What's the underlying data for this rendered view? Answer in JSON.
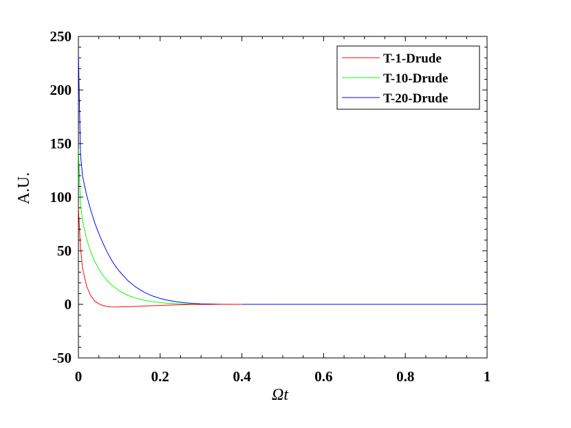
{
  "chart_data": {
    "type": "line",
    "title": "",
    "xlabel": "Ωt",
    "ylabel": "A.U.",
    "xlim": [
      0,
      1
    ],
    "ylim": [
      -50,
      250
    ],
    "xticks": [
      0,
      0.2,
      0.4,
      0.6,
      0.8,
      1
    ],
    "xtick_labels": [
      "0",
      "0.2",
      "0.4",
      "0.6",
      "0.8",
      "1"
    ],
    "yticks": [
      -50,
      0,
      50,
      100,
      150,
      200,
      250
    ],
    "ytick_labels": [
      "-50",
      "0",
      "50",
      "100",
      "150",
      "200",
      "250"
    ],
    "grid": false,
    "legend_position": "top-right",
    "series": [
      {
        "name": "T-1-Drude",
        "color": "#ff0000",
        "x": [
          0,
          0.005,
          0.01,
          0.02,
          0.03,
          0.04,
          0.05,
          0.06,
          0.07,
          0.08,
          0.09,
          0.1,
          0.12,
          0.14,
          0.16,
          0.18,
          0.2,
          0.22,
          0.24,
          0.26,
          0.28,
          0.3,
          0.35,
          0.4
        ],
        "y": [
          90,
          53,
          34,
          17,
          8,
          3,
          0.5,
          -1.2,
          -2.0,
          -2.4,
          -2.5,
          -2.4,
          -2.2,
          -1.9,
          -1.6,
          -1.3,
          -1.0,
          -0.7,
          -0.5,
          -0.3,
          -0.2,
          -0.1,
          0,
          0
        ]
      },
      {
        "name": "T-10-Drude",
        "color": "#00ff00",
        "x": [
          0,
          0.005,
          0.01,
          0.02,
          0.03,
          0.04,
          0.05,
          0.06,
          0.07,
          0.08,
          0.1,
          0.12,
          0.14,
          0.16,
          0.18,
          0.2,
          0.22,
          0.24,
          0.26,
          0.28,
          0.3
        ],
        "y": [
          145,
          95,
          78,
          61,
          49,
          40,
          33,
          27,
          22.5,
          18.5,
          12.5,
          8.5,
          5.8,
          3.9,
          2.6,
          1.6,
          1.0,
          0.6,
          0.3,
          0.1,
          0
        ]
      },
      {
        "name": "T-20-Drude",
        "color": "#0000ff",
        "x": [
          0,
          0.005,
          0.01,
          0.02,
          0.03,
          0.04,
          0.05,
          0.06,
          0.07,
          0.08,
          0.09,
          0.1,
          0.12,
          0.14,
          0.16,
          0.18,
          0.2,
          0.22,
          0.24,
          0.26,
          0.28,
          0.3,
          0.35,
          0.4,
          0.5,
          0.6,
          0.7,
          0.8,
          0.9,
          1.0
        ],
        "y": [
          235,
          140,
          120,
          102,
          88,
          76,
          66,
          57,
          49,
          42,
          36,
          31,
          22.5,
          16.2,
          11.5,
          8.0,
          5.5,
          3.7,
          2.4,
          1.5,
          0.9,
          0.5,
          0.1,
          0,
          0,
          0,
          0,
          0,
          0,
          0
        ]
      }
    ]
  }
}
